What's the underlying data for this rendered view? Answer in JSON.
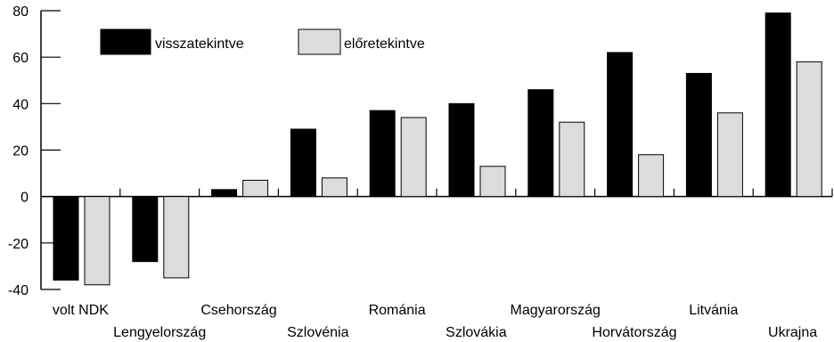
{
  "chart_data": {
    "type": "bar",
    "title": "",
    "xlabel": "",
    "ylabel": "",
    "ylim": [
      -40,
      80
    ],
    "yticks": [
      80,
      60,
      40,
      20,
      0,
      -20,
      -40
    ],
    "ytick_labels": [
      "80",
      "60",
      "40",
      "20",
      "0",
      "-20",
      "-40"
    ],
    "grid": false,
    "legend_position": "top-left",
    "categories": [
      "volt NDK",
      "Lengyelország",
      "Csehország",
      "Szlovénia",
      "Románia",
      "Szlovákia",
      "Magyarország",
      "Horvátország",
      "Litvánia",
      "Ukrajna"
    ],
    "series": [
      {
        "name": "visszatekintve",
        "color": "#000000",
        "values": [
          -36,
          -28,
          3,
          29,
          37,
          40,
          46,
          62,
          53,
          79
        ]
      },
      {
        "name": "előretekintve",
        "color": "#dcdcdc",
        "values": [
          -38,
          -35,
          7,
          8,
          34,
          13,
          32,
          18,
          36,
          58
        ]
      }
    ]
  }
}
